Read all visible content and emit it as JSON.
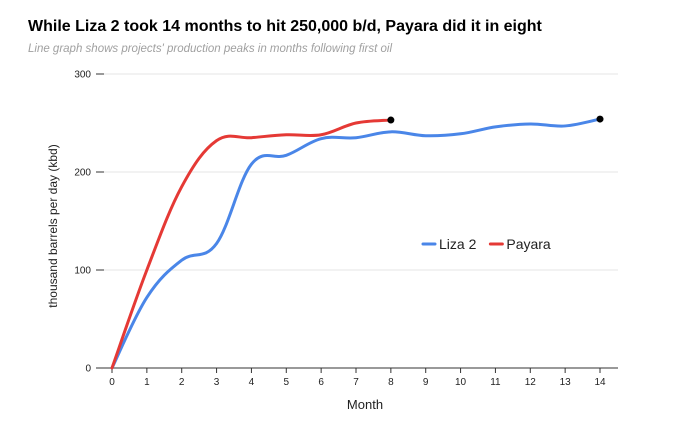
{
  "chart_data": {
    "type": "line",
    "title": "While Liza 2 took 14 months to hit 250,000 b/d, Payara did it in eight",
    "subtitle": "Line graph shows projects' production peaks in months following first oil",
    "xlabel": "Month",
    "ylabel": "thousand barrels per day (kbd)",
    "xlim": [
      0,
      14
    ],
    "ylim": [
      0,
      300
    ],
    "x_ticks": [
      0,
      1,
      2,
      3,
      4,
      5,
      6,
      7,
      8,
      9,
      10,
      11,
      12,
      13,
      14
    ],
    "y_ticks": [
      0,
      100,
      200,
      300
    ],
    "grid": "horizontal",
    "legend": "center-right",
    "series": [
      {
        "name": "Liza 2",
        "color": "#4a86e8",
        "x": [
          0,
          1,
          2,
          3,
          4,
          5,
          6,
          7,
          8,
          9,
          10,
          11,
          12,
          13,
          14
        ],
        "y": [
          0,
          72,
          110,
          127,
          208,
          217,
          234,
          235,
          241,
          237,
          239,
          246,
          249,
          247,
          254
        ],
        "end_marker": true
      },
      {
        "name": "Payara",
        "color": "#e53935",
        "x": [
          0,
          1,
          2,
          3,
          4,
          5,
          6,
          7,
          8
        ],
        "y": [
          0,
          100,
          185,
          232,
          235,
          238,
          238,
          250,
          253
        ],
        "end_marker": true
      }
    ]
  }
}
